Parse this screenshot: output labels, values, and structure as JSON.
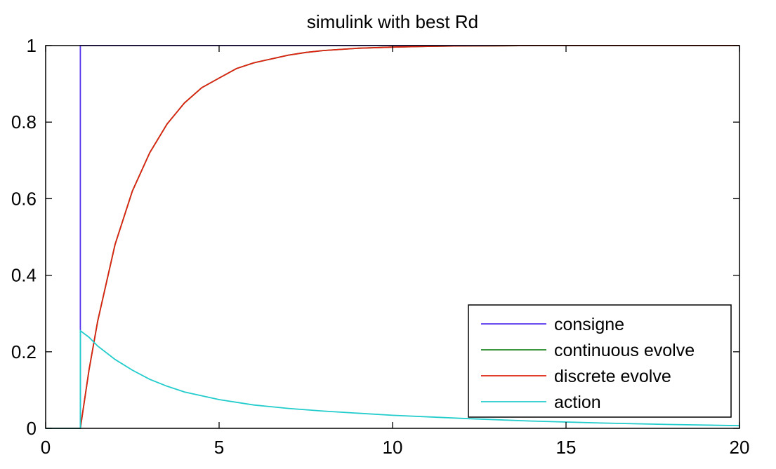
{
  "chart_data": {
    "type": "line",
    "title": "simulink with best Rd",
    "xlabel": "",
    "ylabel": "",
    "xlim": [
      0,
      20
    ],
    "ylim": [
      0,
      1
    ],
    "xticks": [
      0,
      5,
      10,
      15,
      20
    ],
    "xtick_labels": [
      "0",
      "5",
      "10",
      "15",
      "20"
    ],
    "yticks": [
      0,
      0.2,
      0.4,
      0.6,
      0.8,
      1
    ],
    "ytick_labels": [
      "0",
      "0.2",
      "0.4",
      "0.6",
      "0.8",
      "1"
    ],
    "grid": false,
    "legend_position": "bottom-right",
    "series": [
      {
        "name": "consigne",
        "color": "#5533ee",
        "x": [
          0,
          1,
          1,
          20
        ],
        "y": [
          0,
          0,
          1,
          1
        ]
      },
      {
        "name": "continuous evolve",
        "color": "#228822",
        "x": [
          0,
          1,
          1.25,
          1.5,
          2,
          2.5,
          3,
          3.5,
          4,
          4.5,
          5,
          5.5,
          6,
          6.5,
          7,
          7.5,
          8,
          9,
          10,
          11,
          12,
          13,
          14,
          16,
          18,
          20
        ],
        "y": [
          0,
          0,
          0.153,
          0.28,
          0.48,
          0.62,
          0.72,
          0.795,
          0.85,
          0.89,
          0.915,
          0.94,
          0.955,
          0.965,
          0.975,
          0.982,
          0.987,
          0.993,
          0.996,
          0.998,
          0.999,
          0.9995,
          1,
          1,
          1,
          1
        ]
      },
      {
        "name": "discrete evolve",
        "color": "#dd2211",
        "x": [
          0,
          1,
          1.25,
          1.5,
          2,
          2.5,
          3,
          3.5,
          4,
          4.5,
          5,
          5.5,
          6,
          6.5,
          7,
          7.5,
          8,
          9,
          10,
          11,
          12,
          13,
          14,
          16,
          18,
          20
        ],
        "y": [
          0,
          0,
          0.153,
          0.28,
          0.48,
          0.62,
          0.72,
          0.795,
          0.85,
          0.89,
          0.915,
          0.94,
          0.955,
          0.965,
          0.975,
          0.982,
          0.987,
          0.993,
          0.996,
          0.998,
          0.999,
          0.9995,
          1,
          1,
          1,
          1
        ]
      },
      {
        "name": "action",
        "color": "#22cccc",
        "x": [
          0,
          1,
          1,
          1.25,
          1.5,
          2,
          2.5,
          3,
          3.5,
          4,
          5,
          6,
          7,
          8,
          10,
          12,
          14,
          16,
          18,
          20
        ],
        "y": [
          0,
          0,
          0.255,
          0.238,
          0.215,
          0.18,
          0.152,
          0.128,
          0.11,
          0.095,
          0.075,
          0.061,
          0.052,
          0.045,
          0.034,
          0.026,
          0.019,
          0.014,
          0.01,
          0.007
        ]
      }
    ]
  }
}
